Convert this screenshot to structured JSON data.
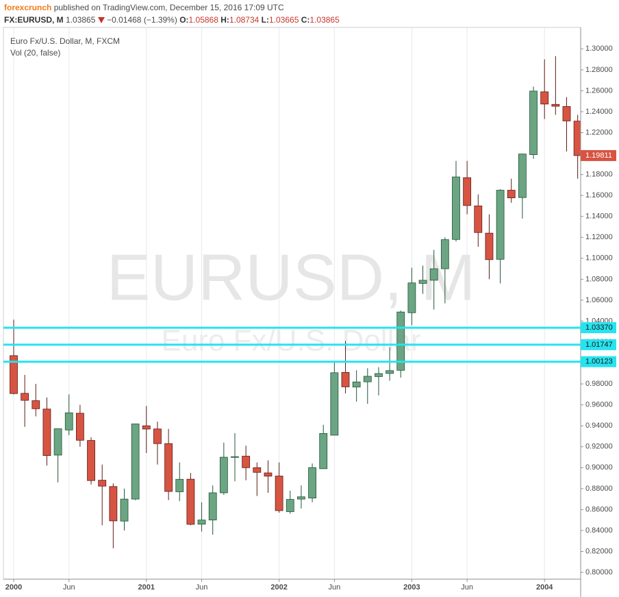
{
  "header": {
    "author": "forexcrunch",
    "published": "published on TradingView.com, December 15, 2016 17:09 UTC",
    "symbol": "FX:EURUSD, M",
    "last": "1.03865",
    "change": "−0.01468 (−1.39%)",
    "ohlc": [
      {
        "label": "O:",
        "value": "1.05868"
      },
      {
        "label": "H:",
        "value": "1.08734"
      },
      {
        "label": "L:",
        "value": "1.03665"
      },
      {
        "label": "C:",
        "value": "1.03865"
      }
    ]
  },
  "chart_data": {
    "type": "candlestick",
    "title": "Euro Fx/U.S. Dollar, M, FXCM",
    "subtitle": "Vol (20, false)",
    "watermark": "EURUSD, M",
    "watermark_subtitle": "Euro Fx/U.S. Dollar",
    "x": [
      "2000-01",
      "2000-02",
      "2000-03",
      "2000-04",
      "2000-05",
      "2000-06",
      "2000-07",
      "2000-08",
      "2000-09",
      "2000-10",
      "2000-11",
      "2000-12",
      "2001-01",
      "2001-02",
      "2001-03",
      "2001-04",
      "2001-05",
      "2001-06",
      "2001-07",
      "2001-08",
      "2001-09",
      "2001-10",
      "2001-11",
      "2001-12",
      "2002-01",
      "2002-02",
      "2002-03",
      "2002-04",
      "2002-05",
      "2002-06",
      "2002-07",
      "2002-08",
      "2002-09",
      "2002-10",
      "2002-11",
      "2002-12",
      "2003-01",
      "2003-02",
      "2003-03",
      "2003-04",
      "2003-05",
      "2003-06",
      "2003-07",
      "2003-08",
      "2003-09",
      "2003-10",
      "2003-11",
      "2003-12",
      "2004-01",
      "2004-02",
      "2004-03",
      "2004-04"
    ],
    "open": [
      1.007,
      0.971,
      0.964,
      0.956,
      0.912,
      0.936,
      0.952,
      0.926,
      0.888,
      0.882,
      0.849,
      0.87,
      0.94,
      0.937,
      0.923,
      0.877,
      0.889,
      0.846,
      0.85,
      0.876,
      0.91,
      0.911,
      0.9,
      0.895,
      0.892,
      0.858,
      0.87,
      0.871,
      0.899,
      0.931,
      0.991,
      0.977,
      0.982,
      0.987,
      0.99,
      0.993,
      1.048,
      1.076,
      1.079,
      1.09,
      1.118,
      1.177,
      1.15,
      1.124,
      1.099,
      1.165,
      1.158,
      1.199,
      1.259,
      1.247,
      1.245,
      1.231
    ],
    "high": [
      1.0414,
      0.9886,
      0.98,
      0.967,
      0.937,
      0.97,
      0.96,
      0.929,
      0.903,
      0.885,
      0.88,
      0.942,
      0.959,
      0.944,
      0.937,
      0.905,
      0.895,
      0.867,
      0.883,
      0.924,
      0.933,
      0.921,
      0.905,
      0.907,
      0.905,
      0.878,
      0.883,
      0.904,
      0.941,
      1.001,
      1.021,
      0.993,
      0.995,
      0.996,
      1.015,
      1.05,
      1.091,
      1.093,
      1.108,
      1.12,
      1.193,
      1.193,
      1.161,
      1.142,
      1.166,
      1.176,
      1.2,
      1.264,
      1.29,
      1.293,
      1.254,
      1.237
    ],
    "low": [
      0.97,
      0.939,
      0.949,
      0.902,
      0.886,
      0.931,
      0.92,
      0.884,
      0.845,
      0.823,
      0.84,
      0.869,
      0.914,
      0.903,
      0.869,
      0.868,
      0.845,
      0.839,
      0.836,
      0.874,
      0.887,
      0.888,
      0.873,
      0.876,
      0.857,
      0.856,
      0.861,
      0.867,
      0.899,
      0.931,
      0.971,
      0.963,
      0.961,
      0.969,
      0.983,
      0.986,
      1.036,
      1.066,
      1.051,
      1.057,
      1.116,
      1.142,
      1.111,
      1.08,
      1.076,
      1.153,
      1.138,
      1.195,
      1.233,
      1.237,
      1.202,
      1.176
    ],
    "close": [
      0.9708,
      0.9643,
      0.9563,
      0.9116,
      0.9372,
      0.9524,
      0.9262,
      0.8877,
      0.8824,
      0.8492,
      0.87,
      0.9418,
      0.9369,
      0.923,
      0.8773,
      0.8889,
      0.8459,
      0.85,
      0.876,
      0.91,
      0.9105,
      0.9,
      0.8955,
      0.8919,
      0.859,
      0.8697,
      0.8722,
      0.9001,
      0.9327,
      0.9907,
      0.9772,
      0.9819,
      0.9873,
      0.9899,
      0.9927,
      1.0487,
      1.0765,
      1.079,
      1.09,
      1.1178,
      1.1777,
      1.1504,
      1.1246,
      1.0987,
      1.165,
      1.1577,
      1.1996,
      1.2597,
      1.2473,
      1.2452,
      1.2312,
      1.1981
    ],
    "up_color": "#6ba583",
    "down_color": "#d75442",
    "up_border": "#225437",
    "down_border": "#5b1a13",
    "xticks": [
      {
        "value": "2000-01",
        "label": "2000"
      },
      {
        "value": "2000-06",
        "label": "Jun"
      },
      {
        "value": "2001-01",
        "label": "2001"
      },
      {
        "value": "2001-06",
        "label": "Jun"
      },
      {
        "value": "2002-01",
        "label": "2002"
      },
      {
        "value": "2002-06",
        "label": "Jun"
      },
      {
        "value": "2003-01",
        "label": "2003"
      },
      {
        "value": "2003-06",
        "label": "Jun"
      },
      {
        "value": "2004-01",
        "label": "2004"
      }
    ],
    "ylim": [
      0.7935,
      1.3205
    ],
    "yticks": [
      {
        "value": 0.8,
        "label": "0.80000"
      },
      {
        "value": 0.82,
        "label": "0.82000"
      },
      {
        "value": 0.84,
        "label": "0.84000"
      },
      {
        "value": 0.86,
        "label": "0.86000"
      },
      {
        "value": 0.88,
        "label": "0.88000"
      },
      {
        "value": 0.9,
        "label": "0.90000"
      },
      {
        "value": 0.92,
        "label": "0.92000"
      },
      {
        "value": 0.94,
        "label": "0.94000"
      },
      {
        "value": 0.96,
        "label": "0.96000"
      },
      {
        "value": 0.98,
        "label": "0.98000"
      },
      {
        "value": 1.0,
        "label": "1.00000"
      },
      {
        "value": 1.02,
        "label": "1.02000"
      },
      {
        "value": 1.04,
        "label": "1.04000"
      },
      {
        "value": 1.06,
        "label": "1.06000"
      },
      {
        "value": 1.08,
        "label": "1.08000"
      },
      {
        "value": 1.1,
        "label": "1.10000"
      },
      {
        "value": 1.12,
        "label": "1.12000"
      },
      {
        "value": 1.14,
        "label": "1.14000"
      },
      {
        "value": 1.16,
        "label": "1.16000"
      },
      {
        "value": 1.18,
        "label": "1.18000"
      },
      {
        "value": 1.2,
        "label": "1.20000"
      },
      {
        "value": 1.22,
        "label": "1.22000"
      },
      {
        "value": 1.24,
        "label": "1.24000"
      },
      {
        "value": 1.26,
        "label": "1.26000"
      },
      {
        "value": 1.28,
        "label": "1.28000"
      },
      {
        "value": 1.3,
        "label": "1.30000"
      }
    ],
    "grid": true,
    "hlines": [
      {
        "value": 1.0337,
        "label": "1.03370"
      },
      {
        "value": 1.01747,
        "label": "1.01747"
      },
      {
        "value": 1.00123,
        "label": "1.00123"
      }
    ],
    "hline_color": "#27e3ef",
    "last_price": {
      "value": 1.19811,
      "label": "1.19811"
    }
  }
}
